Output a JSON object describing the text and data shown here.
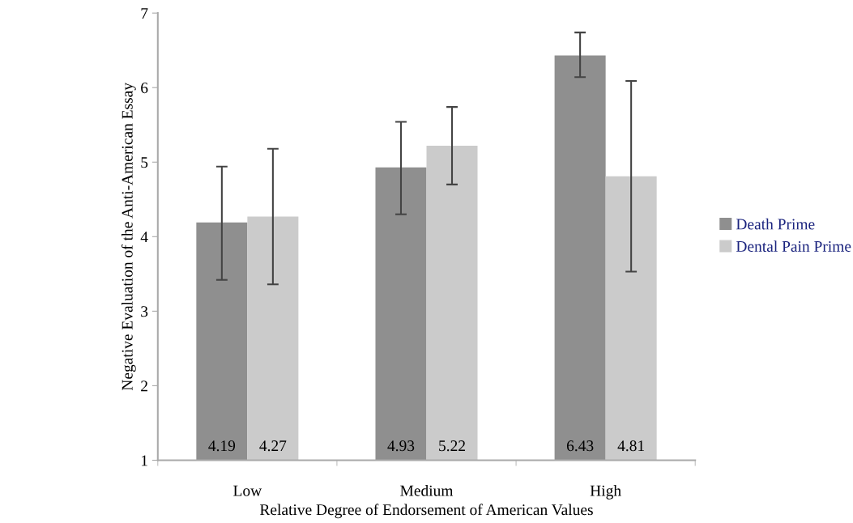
{
  "chart_data": {
    "type": "bar",
    "xlabel": "Relative Degree of Endorsement of American Values",
    "ylabel": "Negative Evaluation of the Anti-American Essay",
    "categories": [
      "Low",
      "Medium",
      "High"
    ],
    "series": [
      {
        "name": "Death Prime",
        "color": "#8f8f8f",
        "values": [
          4.19,
          4.93,
          6.43
        ],
        "errors": [
          [
            3.42,
            4.94
          ],
          [
            4.3,
            5.54
          ],
          [
            6.14,
            6.74
          ]
        ]
      },
      {
        "name": "Dental Pain Prime",
        "color": "#cbcbcb",
        "values": [
          4.27,
          5.22,
          4.81
        ],
        "errors": [
          [
            3.36,
            5.18
          ],
          [
            4.7,
            5.74
          ],
          [
            3.53,
            6.09
          ]
        ]
      }
    ],
    "ylim": [
      1,
      7
    ],
    "yticks": [
      1,
      2,
      3,
      4,
      5,
      6,
      7
    ],
    "data_labels": true,
    "grid": false,
    "legend": "right"
  }
}
